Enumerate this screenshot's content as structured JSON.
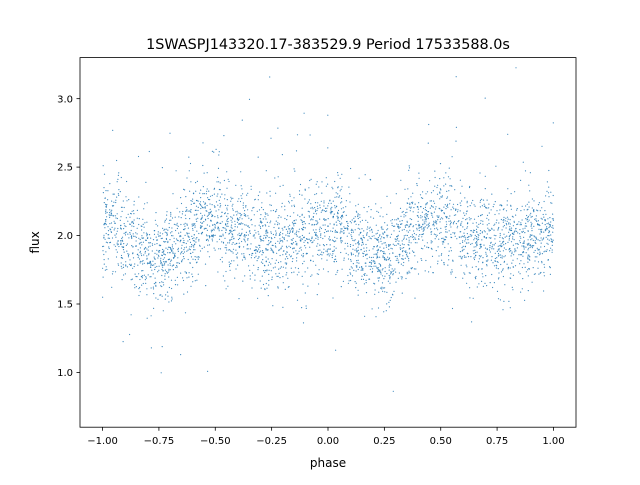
{
  "chart_data": {
    "type": "scatter",
    "title": "1SWASPJ143320.17-383529.9 Period 17533588.0s",
    "xlabel": "phase",
    "ylabel": "flux",
    "xlim": [
      -1.1,
      1.1
    ],
    "ylim": [
      0.6,
      3.3
    ],
    "grid": false,
    "legend": "none",
    "point_color": "#1f77b4",
    "xticks": [
      {
        "value": -1.0,
        "label": "−1.00"
      },
      {
        "value": -0.75,
        "label": "−0.75"
      },
      {
        "value": -0.5,
        "label": "−0.50"
      },
      {
        "value": -0.25,
        "label": "−0.25"
      },
      {
        "value": 0.0,
        "label": "0.00"
      },
      {
        "value": 0.25,
        "label": "0.25"
      },
      {
        "value": 0.5,
        "label": "0.50"
      },
      {
        "value": 0.75,
        "label": "0.75"
      },
      {
        "value": 1.0,
        "label": "1.00"
      }
    ],
    "yticks": [
      {
        "value": 1.0,
        "label": "1.0"
      },
      {
        "value": 1.5,
        "label": "1.5"
      },
      {
        "value": 2.0,
        "label": "2.0"
      },
      {
        "value": 2.5,
        "label": "2.5"
      },
      {
        "value": 3.0,
        "label": "3.0"
      }
    ],
    "light_curve": {
      "phase_period": 1.0,
      "mean_flux": 2.0,
      "points_per_cycle": 1800,
      "profile": [
        {
          "phase": 0.0,
          "flux": 2.05
        },
        {
          "phase": 0.05,
          "flux": 2.1
        },
        {
          "phase": 0.1,
          "flux": 2.0
        },
        {
          "phase": 0.2,
          "flux": 1.85
        },
        {
          "phase": 0.25,
          "flux": 1.82
        },
        {
          "phase": 0.3,
          "flux": 1.88
        },
        {
          "phase": 0.4,
          "flux": 2.05
        },
        {
          "phase": 0.5,
          "flux": 2.15
        },
        {
          "phase": 0.55,
          "flux": 2.05
        },
        {
          "phase": 0.65,
          "flux": 2.0
        },
        {
          "phase": 0.75,
          "flux": 1.95
        },
        {
          "phase": 0.8,
          "flux": 1.95
        },
        {
          "phase": 0.9,
          "flux": 2.0
        },
        {
          "phase": 1.0,
          "flux": 2.05
        }
      ],
      "scatter_sigma": 0.17,
      "outlier_fraction": 0.04,
      "flux_range": [
        0.75,
        3.25
      ]
    }
  }
}
